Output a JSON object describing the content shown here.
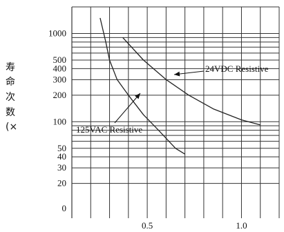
{
  "chart_data": {
    "type": "line",
    "ylabel_chars": [
      "寿",
      "命",
      "次",
      "数",
      "(×"
    ],
    "y_scale": "log",
    "x_scale": "linear",
    "grid": true,
    "xlim": [
      0.1,
      1.2
    ],
    "ylim": [
      12,
      2000
    ],
    "x_ticks": [
      {
        "value": 0.5,
        "label": "0.5"
      },
      {
        "value": 1.0,
        "label": "1.0"
      }
    ],
    "y_ticks": [
      {
        "value": 1000,
        "label": "1000"
      },
      {
        "value": 500,
        "label": "500"
      },
      {
        "value": 400,
        "label": "400"
      },
      {
        "value": 300,
        "label": "300"
      },
      {
        "value": 200,
        "label": "200"
      },
      {
        "value": 100,
        "label": "100"
      },
      {
        "value": 50,
        "label": "50"
      },
      {
        "value": 40,
        "label": "40"
      },
      {
        "value": 30,
        "label": "30"
      },
      {
        "value": 20,
        "label": "20"
      }
    ],
    "bottom_tick_label": "0",
    "series": [
      {
        "name": "24VDC Resistive",
        "color": "#222222",
        "points": [
          [
            0.37,
            900
          ],
          [
            0.48,
            500
          ],
          [
            0.6,
            300
          ],
          [
            0.72,
            200
          ],
          [
            0.85,
            140
          ],
          [
            1.0,
            105
          ],
          [
            1.1,
            92
          ]
        ]
      },
      {
        "name": "125VAC Resistive",
        "color": "#222222",
        "points": [
          [
            0.25,
            1500
          ],
          [
            0.28,
            800
          ],
          [
            0.3,
            500
          ],
          [
            0.34,
            300
          ],
          [
            0.4,
            200
          ],
          [
            0.48,
            120
          ],
          [
            0.56,
            80
          ],
          [
            0.65,
            50
          ],
          [
            0.7,
            43
          ]
        ]
      }
    ]
  }
}
